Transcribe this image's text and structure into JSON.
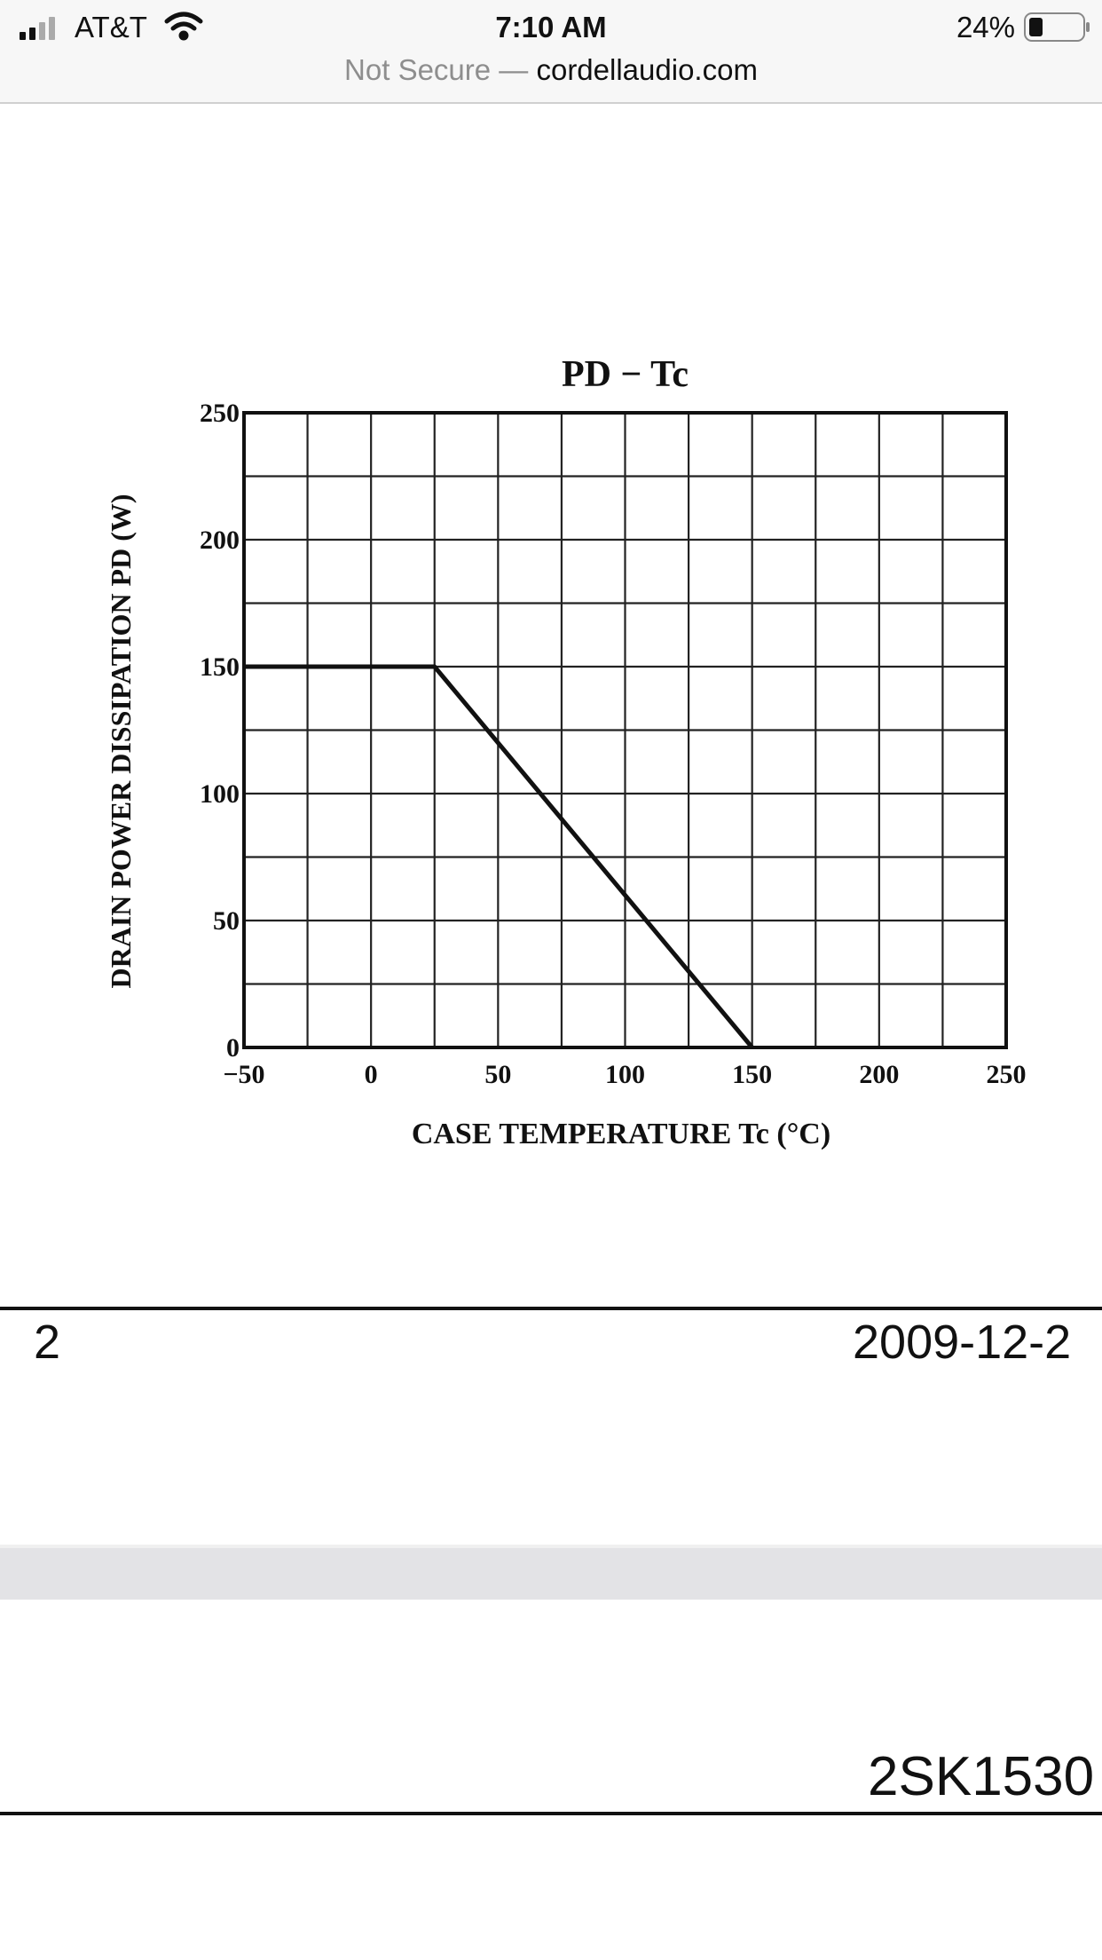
{
  "status_bar": {
    "carrier": "AT&T",
    "time": "7:10 AM",
    "battery": "24%"
  },
  "address_bar": {
    "security": "Not Secure —",
    "domain": "cordellaudio.com"
  },
  "chart_data": {
    "type": "line",
    "title": "PD − Tc",
    "x_label": "CASE TEMPERATURE Tc (°C)",
    "y_label": "DRAIN POWER DISSIPATION PD (W)",
    "x": [
      -50,
      25,
      150
    ],
    "series": [
      {
        "color": "#111111",
        "values": [
          150,
          150,
          0
        ]
      }
    ],
    "xlim": [
      -50,
      250
    ],
    "xticks": [
      {
        "value": -50,
        "label": "−50"
      },
      0,
      50,
      100,
      150,
      200,
      250
    ],
    "ylim": [
      0,
      250
    ],
    "yticks": [
      0,
      50,
      100,
      150,
      200,
      250
    ],
    "grid": true,
    "minor_grid": true
  },
  "footer": {
    "page_number": "2",
    "date": "2009-12-2"
  },
  "next_page": {
    "part_number": "2SK1530"
  }
}
